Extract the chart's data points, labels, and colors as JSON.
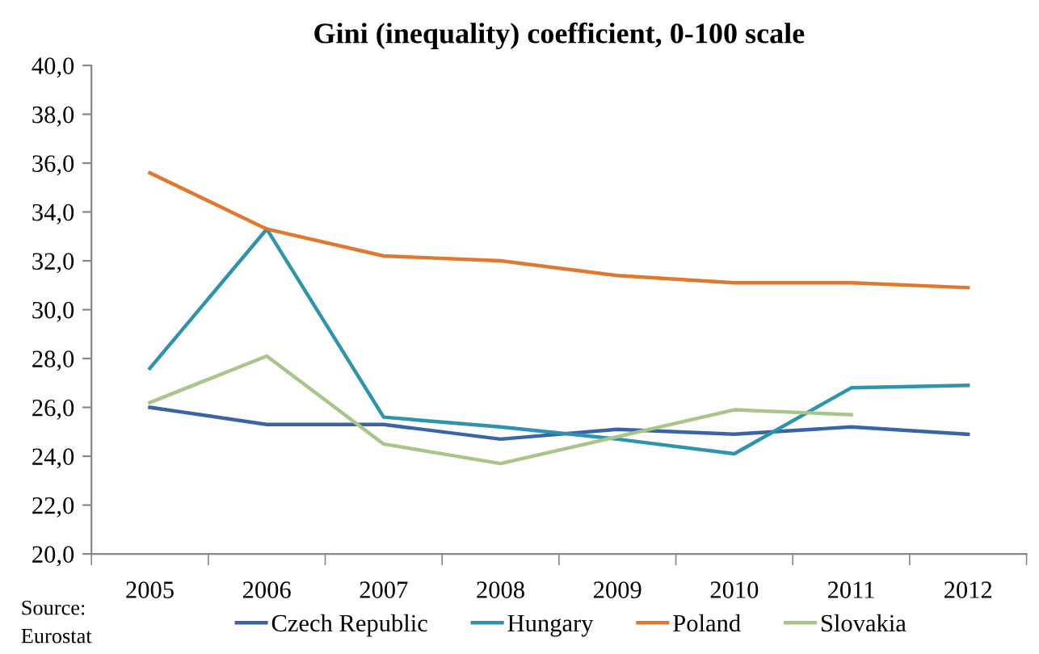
{
  "chart_data": {
    "type": "line",
    "title": "Gini (inequality) coefficient, 0-100 scale",
    "categories": [
      "2005",
      "2006",
      "2007",
      "2008",
      "2009",
      "2010",
      "2011",
      "2012"
    ],
    "series": [
      {
        "name": "Czech Republic",
        "color": "#3a64a4",
        "values": [
          26.0,
          25.3,
          25.3,
          24.7,
          25.1,
          24.9,
          25.2,
          24.9
        ]
      },
      {
        "name": "Hungary",
        "color": "#2e93ad",
        "values": [
          27.6,
          33.3,
          25.6,
          25.2,
          24.7,
          24.1,
          26.8,
          26.9
        ]
      },
      {
        "name": "Poland",
        "color": "#e0782f",
        "values": [
          35.6,
          33.3,
          32.2,
          32.0,
          31.4,
          31.1,
          31.1,
          30.9
        ]
      },
      {
        "name": "Slovakia",
        "color": "#a8c68a",
        "values": [
          26.2,
          28.1,
          24.5,
          23.7,
          24.8,
          25.9,
          25.7,
          null
        ]
      }
    ],
    "ylim": [
      20,
      40
    ],
    "yticks": [
      {
        "value": 20,
        "label": "20,0"
      },
      {
        "value": 22,
        "label": "22,0"
      },
      {
        "value": 24,
        "label": "24,0"
      },
      {
        "value": 26,
        "label": "26,0"
      },
      {
        "value": 28,
        "label": "28,0"
      },
      {
        "value": 30,
        "label": "30,0"
      },
      {
        "value": 32,
        "label": "32,0"
      },
      {
        "value": 34,
        "label": "34,0"
      },
      {
        "value": 36,
        "label": "36,0"
      },
      {
        "value": 38,
        "label": "38,0"
      },
      {
        "value": 40,
        "label": "40,0"
      }
    ],
    "grid": false,
    "legend": "bottom",
    "marker": "none",
    "line_style": "solid",
    "annotations": [
      "Source:\nEurostat"
    ]
  }
}
